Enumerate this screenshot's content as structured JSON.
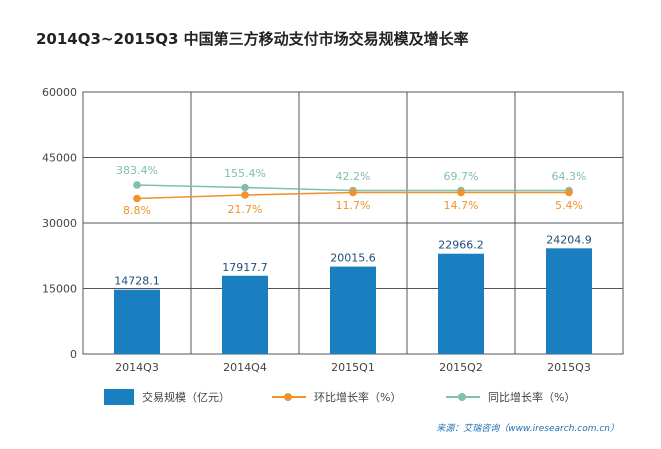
{
  "chart_data": {
    "type": "bar",
    "title": "2014Q3~2015Q3 中国第三方移动支付市场交易规模及增长率",
    "categories": [
      "2014Q3",
      "2014Q4",
      "2015Q1",
      "2015Q2",
      "2015Q3"
    ],
    "ylim": [
      0,
      60000
    ],
    "yticks": [
      "60000",
      "45000",
      "30000",
      "15000",
      "0"
    ],
    "ytick_values": [
      60000,
      45000,
      30000,
      15000,
      0
    ],
    "grid": true,
    "series": [
      {
        "name": "交易规模（亿元）",
        "type": "bar",
        "color": "#1a7fc1",
        "values": [
          14728.1,
          17917.7,
          20015.6,
          22966.2,
          24204.9
        ],
        "labels": [
          "14728.1",
          "17917.7",
          "20015.6",
          "22966.2",
          "24204.9"
        ]
      },
      {
        "name": "环比增长率（%）",
        "type": "line",
        "color": "#f0922e",
        "values": [
          8.8,
          21.7,
          11.7,
          14.7,
          5.4
        ],
        "labels": [
          "8.8%",
          "21.7%",
          "11.7%",
          "14.7%",
          "5.4%"
        ]
      },
      {
        "name": "同比增长率（%）",
        "type": "line",
        "color": "#7fbfae",
        "values": [
          383.4,
          155.4,
          42.2,
          69.7,
          64.3
        ],
        "labels": [
          "383.4%",
          "155.4%",
          "42.2%",
          "69.7%",
          "64.3%"
        ]
      }
    ],
    "legend_position": "bottom"
  },
  "source": "来源：艾瑞咨询（www.iresearch.com.cn）"
}
